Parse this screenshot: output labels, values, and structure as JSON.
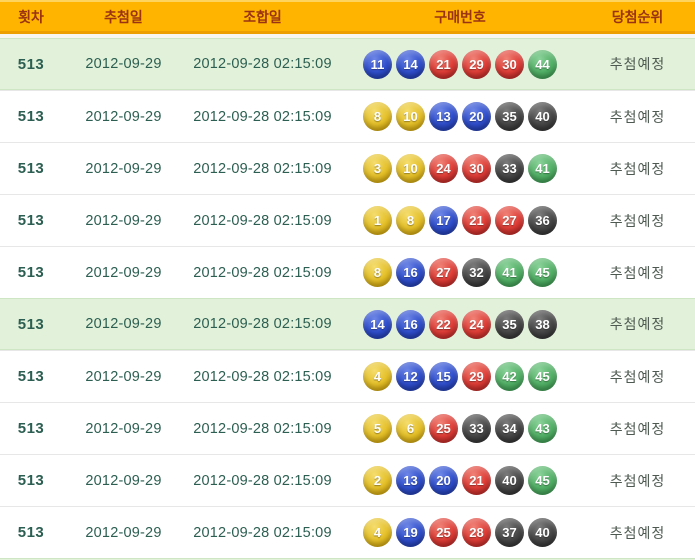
{
  "table": {
    "columns": [
      {
        "id": "round",
        "label": "횟차"
      },
      {
        "id": "draw_date",
        "label": "추첨일"
      },
      {
        "id": "combination_date",
        "label": "조합일"
      },
      {
        "id": "numbers",
        "label": "구매번호"
      },
      {
        "id": "rank",
        "label": "당첨순위"
      }
    ],
    "rows": [
      {
        "round": "513",
        "draw_date": "2012-09-29",
        "combination_date": "2012-09-28 02:15:09",
        "numbers": [
          11,
          14,
          21,
          29,
          30,
          44
        ],
        "rank": "추첨예정",
        "highlighted": true
      },
      {
        "round": "513",
        "draw_date": "2012-09-29",
        "combination_date": "2012-09-28 02:15:09",
        "numbers": [
          8,
          10,
          13,
          20,
          35,
          40
        ],
        "rank": "추첨예정",
        "highlighted": false
      },
      {
        "round": "513",
        "draw_date": "2012-09-29",
        "combination_date": "2012-09-28 02:15:09",
        "numbers": [
          3,
          10,
          24,
          30,
          33,
          41
        ],
        "rank": "추첨예정",
        "highlighted": false
      },
      {
        "round": "513",
        "draw_date": "2012-09-29",
        "combination_date": "2012-09-28 02:15:09",
        "numbers": [
          1,
          8,
          17,
          21,
          27,
          36
        ],
        "rank": "추첨예정",
        "highlighted": false
      },
      {
        "round": "513",
        "draw_date": "2012-09-29",
        "combination_date": "2012-09-28 02:15:09",
        "numbers": [
          8,
          16,
          27,
          32,
          41,
          45
        ],
        "rank": "추첨예정",
        "highlighted": false
      },
      {
        "round": "513",
        "draw_date": "2012-09-29",
        "combination_date": "2012-09-28 02:15:09",
        "numbers": [
          14,
          16,
          22,
          24,
          35,
          38
        ],
        "rank": "추첨예정",
        "highlighted": true
      },
      {
        "round": "513",
        "draw_date": "2012-09-29",
        "combination_date": "2012-09-28 02:15:09",
        "numbers": [
          4,
          12,
          15,
          29,
          42,
          45
        ],
        "rank": "추첨예정",
        "highlighted": false
      },
      {
        "round": "513",
        "draw_date": "2012-09-29",
        "combination_date": "2012-09-28 02:15:09",
        "numbers": [
          5,
          6,
          25,
          33,
          34,
          43
        ],
        "rank": "추첨예정",
        "highlighted": false
      },
      {
        "round": "513",
        "draw_date": "2012-09-29",
        "combination_date": "2012-09-28 02:15:09",
        "numbers": [
          2,
          13,
          20,
          21,
          40,
          45
        ],
        "rank": "추첨예정",
        "highlighted": false
      },
      {
        "round": "513",
        "draw_date": "2012-09-29",
        "combination_date": "2012-09-28 02:15:09",
        "numbers": [
          4,
          19,
          25,
          28,
          37,
          40
        ],
        "rank": "추첨예정",
        "highlighted": false
      }
    ]
  },
  "colors": {
    "header_bg": "#ffb400",
    "header_border_bottom": "#ed9e00",
    "header_text": "#993311",
    "row_text": "#2c5f51",
    "rank_text": "#4e5a51",
    "highlight_row_bg": "#e2f1da",
    "ball_yellow": "#e4c02a",
    "ball_blue": "#2f4ecb",
    "ball_red": "#dd3d36",
    "ball_gray": "#474747",
    "ball_green": "#52b066"
  },
  "ball_color_ranges": [
    {
      "max": 10,
      "color": "yellow"
    },
    {
      "max": 20,
      "color": "blue"
    },
    {
      "max": 30,
      "color": "red"
    },
    {
      "max": 40,
      "color": "gray"
    },
    {
      "max": 45,
      "color": "green"
    }
  ]
}
